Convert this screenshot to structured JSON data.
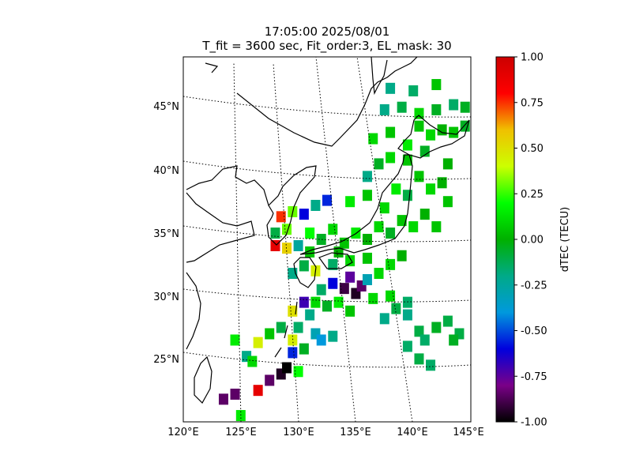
{
  "title": {
    "time": "17:05:00 2025/08/01",
    "params": "T_fit = 3600 sec, Fit_order:3, EL_mask: 30"
  },
  "map": {
    "lon_labels": [
      "120°E",
      "125°E",
      "130°E",
      "135°E",
      "140°E",
      "145°E"
    ],
    "lat_labels": [
      "25°N",
      "30°N",
      "35°N",
      "40°N",
      "45°N"
    ],
    "gridlines": "dotted",
    "region": "Japan and East Asia coastline"
  },
  "colorbar": {
    "label": "dTEC (TECU)",
    "tick_labels": [
      "1.00",
      "0.75",
      "0.50",
      "0.25",
      "0.00",
      "-0.25",
      "-0.50",
      "-0.75",
      "-1.00"
    ],
    "range": [
      -1.0,
      1.0
    ],
    "colormap": "nipy_spectral",
    "stops": [
      "#000000",
      "#7a0088",
      "#0000dd",
      "#0099dd",
      "#00aa88",
      "#00b000",
      "#00ff00",
      "#ccff00",
      "#f0c000",
      "#ff0000",
      "#cc0000"
    ]
  },
  "chart_data": {
    "type": "heatmap",
    "xlabel": "",
    "ylabel": "",
    "value_label": "dTEC (TECU)",
    "xlim": [
      120,
      145
    ],
    "ylim": [
      20,
      49
    ],
    "points": [
      {
        "lon": 123.5,
        "lat": 21.8,
        "v": -0.85
      },
      {
        "lon": 124.5,
        "lat": 22.2,
        "v": -0.85
      },
      {
        "lon": 125.0,
        "lat": 20.5,
        "v": 0.15
      },
      {
        "lon": 126.5,
        "lat": 22.5,
        "v": 0.9
      },
      {
        "lon": 127.5,
        "lat": 23.3,
        "v": -0.85
      },
      {
        "lon": 128.5,
        "lat": 23.8,
        "v": -0.95
      },
      {
        "lon": 129.0,
        "lat": 24.3,
        "v": -1.0
      },
      {
        "lon": 130.0,
        "lat": 24.0,
        "v": 0.2
      },
      {
        "lon": 125.5,
        "lat": 25.2,
        "v": -0.2
      },
      {
        "lon": 126.0,
        "lat": 24.8,
        "v": 0.1
      },
      {
        "lon": 126.5,
        "lat": 26.3,
        "v": 0.45
      },
      {
        "lon": 124.5,
        "lat": 26.5,
        "v": 0.15
      },
      {
        "lon": 127.5,
        "lat": 27.0,
        "v": 0.05
      },
      {
        "lon": 128.5,
        "lat": 27.5,
        "v": -0.1
      },
      {
        "lon": 129.5,
        "lat": 25.5,
        "v": -0.55
      },
      {
        "lon": 130.5,
        "lat": 25.8,
        "v": -0.05
      },
      {
        "lon": 129.5,
        "lat": 26.5,
        "v": 0.45
      },
      {
        "lon": 130.0,
        "lat": 27.5,
        "v": -0.15
      },
      {
        "lon": 131.5,
        "lat": 27.0,
        "v": -0.3
      },
      {
        "lon": 132.0,
        "lat": 26.5,
        "v": -0.4
      },
      {
        "lon": 133.0,
        "lat": 26.8,
        "v": -0.2
      },
      {
        "lon": 131.0,
        "lat": 28.5,
        "v": -0.2
      },
      {
        "lon": 129.5,
        "lat": 28.8,
        "v": 0.5
      },
      {
        "lon": 130.5,
        "lat": 29.5,
        "v": -0.7
      },
      {
        "lon": 131.5,
        "lat": 29.5,
        "v": 0.1
      },
      {
        "lon": 132.5,
        "lat": 29.2,
        "v": -0.05
      },
      {
        "lon": 133.5,
        "lat": 29.5,
        "v": 0.15
      },
      {
        "lon": 134.5,
        "lat": 28.8,
        "v": 0.05
      },
      {
        "lon": 132.0,
        "lat": 30.5,
        "v": -0.15
      },
      {
        "lon": 133.0,
        "lat": 31.0,
        "v": -0.6
      },
      {
        "lon": 134.0,
        "lat": 30.6,
        "v": -0.9
      },
      {
        "lon": 135.0,
        "lat": 30.2,
        "v": -0.95
      },
      {
        "lon": 135.5,
        "lat": 30.8,
        "v": -0.85
      },
      {
        "lon": 134.5,
        "lat": 31.5,
        "v": -0.75
      },
      {
        "lon": 136.0,
        "lat": 31.3,
        "v": -0.3
      },
      {
        "lon": 137.0,
        "lat": 31.8,
        "v": 0.1
      },
      {
        "lon": 129.5,
        "lat": 31.8,
        "v": -0.2
      },
      {
        "lon": 130.5,
        "lat": 32.4,
        "v": -0.1
      },
      {
        "lon": 131.5,
        "lat": 32.0,
        "v": 0.45
      },
      {
        "lon": 133.0,
        "lat": 32.5,
        "v": -0.15
      },
      {
        "lon": 134.5,
        "lat": 32.8,
        "v": 0.1
      },
      {
        "lon": 136.0,
        "lat": 33.0,
        "v": 0.05
      },
      {
        "lon": 138.0,
        "lat": 32.5,
        "v": 0.1
      },
      {
        "lon": 139.0,
        "lat": 33.2,
        "v": 0.0
      },
      {
        "lon": 128.0,
        "lat": 34.0,
        "v": 0.9
      },
      {
        "lon": 129.0,
        "lat": 33.8,
        "v": 0.55
      },
      {
        "lon": 128.0,
        "lat": 35.0,
        "v": -0.1
      },
      {
        "lon": 129.0,
        "lat": 35.3,
        "v": 0.3
      },
      {
        "lon": 128.5,
        "lat": 36.3,
        "v": 0.75
      },
      {
        "lon": 129.5,
        "lat": 36.7,
        "v": 0.3
      },
      {
        "lon": 130.5,
        "lat": 36.5,
        "v": -0.6
      },
      {
        "lon": 131.5,
        "lat": 37.2,
        "v": -0.2
      },
      {
        "lon": 132.5,
        "lat": 37.6,
        "v": -0.55
      },
      {
        "lon": 131.0,
        "lat": 35.0,
        "v": 0.2
      },
      {
        "lon": 132.0,
        "lat": 34.5,
        "v": -0.05
      },
      {
        "lon": 133.0,
        "lat": 35.3,
        "v": 0.1
      },
      {
        "lon": 134.0,
        "lat": 34.2,
        "v": 0.05
      },
      {
        "lon": 135.0,
        "lat": 35.0,
        "v": 0.15
      },
      {
        "lon": 136.0,
        "lat": 34.5,
        "v": 0.0
      },
      {
        "lon": 137.0,
        "lat": 35.5,
        "v": 0.1
      },
      {
        "lon": 138.0,
        "lat": 35.0,
        "v": -0.05
      },
      {
        "lon": 139.0,
        "lat": 36.0,
        "v": 0.05
      },
      {
        "lon": 140.0,
        "lat": 35.5,
        "v": 0.1
      },
      {
        "lon": 141.0,
        "lat": 36.5,
        "v": 0.0
      },
      {
        "lon": 142.0,
        "lat": 35.5,
        "v": 0.05
      },
      {
        "lon": 143.0,
        "lat": 37.5,
        "v": 0.05
      },
      {
        "lon": 134.5,
        "lat": 37.5,
        "v": 0.15
      },
      {
        "lon": 136.0,
        "lat": 38.0,
        "v": 0.05
      },
      {
        "lon": 137.5,
        "lat": 37.0,
        "v": 0.1
      },
      {
        "lon": 138.5,
        "lat": 38.5,
        "v": 0.15
      },
      {
        "lon": 139.5,
        "lat": 38.0,
        "v": -0.1
      },
      {
        "lon": 140.5,
        "lat": 39.5,
        "v": 0.05
      },
      {
        "lon": 141.5,
        "lat": 38.5,
        "v": 0.1
      },
      {
        "lon": 142.5,
        "lat": 39.0,
        "v": 0.0
      },
      {
        "lon": 136.0,
        "lat": 39.5,
        "v": -0.2
      },
      {
        "lon": 137.0,
        "lat": 40.5,
        "v": -0.05
      },
      {
        "lon": 138.0,
        "lat": 41.0,
        "v": 0.1
      },
      {
        "lon": 139.5,
        "lat": 40.8,
        "v": 0.05
      },
      {
        "lon": 141.0,
        "lat": 41.5,
        "v": -0.05
      },
      {
        "lon": 143.0,
        "lat": 40.5,
        "v": 0.0
      },
      {
        "lon": 136.5,
        "lat": 42.5,
        "v": 0.1
      },
      {
        "lon": 138.0,
        "lat": 43.0,
        "v": 0.05
      },
      {
        "lon": 139.5,
        "lat": 42.0,
        "v": 0.15
      },
      {
        "lon": 140.5,
        "lat": 43.5,
        "v": 0.05
      },
      {
        "lon": 141.5,
        "lat": 42.8,
        "v": 0.1
      },
      {
        "lon": 142.5,
        "lat": 43.2,
        "v": 0.0
      },
      {
        "lon": 143.5,
        "lat": 43.0,
        "v": 0.05
      },
      {
        "lon": 144.5,
        "lat": 43.5,
        "v": -0.05
      },
      {
        "lon": 137.5,
        "lat": 44.8,
        "v": -0.2
      },
      {
        "lon": 139.0,
        "lat": 45.0,
        "v": -0.1
      },
      {
        "lon": 140.5,
        "lat": 44.5,
        "v": 0.1
      },
      {
        "lon": 142.0,
        "lat": 44.8,
        "v": -0.05
      },
      {
        "lon": 143.5,
        "lat": 45.2,
        "v": -0.15
      },
      {
        "lon": 144.5,
        "lat": 45.0,
        "v": -0.05
      },
      {
        "lon": 138.0,
        "lat": 46.5,
        "v": -0.2
      },
      {
        "lon": 140.0,
        "lat": 46.3,
        "v": -0.15
      },
      {
        "lon": 142.0,
        "lat": 46.8,
        "v": 0.05
      },
      {
        "lon": 137.5,
        "lat": 28.2,
        "v": -0.2
      },
      {
        "lon": 138.5,
        "lat": 29.0,
        "v": -0.1
      },
      {
        "lon": 139.5,
        "lat": 28.5,
        "v": -0.2
      },
      {
        "lon": 138.0,
        "lat": 30.0,
        "v": 0.1
      },
      {
        "lon": 139.5,
        "lat": 29.5,
        "v": -0.15
      },
      {
        "lon": 140.5,
        "lat": 27.2,
        "v": -0.1
      },
      {
        "lon": 141.0,
        "lat": 26.5,
        "v": -0.15
      },
      {
        "lon": 142.0,
        "lat": 27.5,
        "v": -0.05
      },
      {
        "lon": 143.0,
        "lat": 28.0,
        "v": -0.1
      },
      {
        "lon": 144.0,
        "lat": 27.0,
        "v": -0.1
      },
      {
        "lon": 139.5,
        "lat": 26.0,
        "v": -0.15
      },
      {
        "lon": 140.5,
        "lat": 25.0,
        "v": -0.1
      },
      {
        "lon": 141.5,
        "lat": 24.5,
        "v": -0.15
      },
      {
        "lon": 143.5,
        "lat": 26.5,
        "v": -0.05
      },
      {
        "lon": 136.5,
        "lat": 29.8,
        "v": 0.1
      },
      {
        "lon": 133.5,
        "lat": 33.5,
        "v": 0.0
      },
      {
        "lon": 130.0,
        "lat": 34.0,
        "v": -0.25
      },
      {
        "lon": 131.0,
        "lat": 33.5,
        "v": 0.05
      }
    ]
  }
}
